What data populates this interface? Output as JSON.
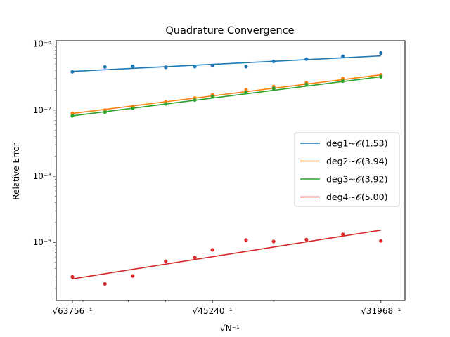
{
  "chart_data": {
    "type": "line",
    "title": "Quadrature Convergence",
    "xlabel": "√N⁻¹",
    "ylabel": "Relative Error",
    "xscale": "reciprocal-sqrt",
    "yscale": "log",
    "xlim": [
      66600,
      30560
    ],
    "ylim": [
      1.32e-10,
      1.12e-06
    ],
    "x_ticks": [
      {
        "value": 63756,
        "label": "√63756⁻¹"
      },
      {
        "value": 45240,
        "label": "√45240⁻¹"
      },
      {
        "value": 31968,
        "label": "√31968⁻¹"
      }
    ],
    "y_ticks": [
      {
        "value": 1e-09,
        "label": "10⁻⁹"
      },
      {
        "value": 1e-08,
        "label": "10⁻⁸"
      },
      {
        "value": 1e-07,
        "label": "10⁻⁷"
      },
      {
        "value": 1e-06,
        "label": "10⁻⁶"
      }
    ],
    "x": [
      63756,
      58556,
      54600,
      50400,
      47100,
      45240,
      42000,
      39600,
      37000,
      34400,
      31968
    ],
    "grid": false,
    "legend_position": "center-right",
    "series": [
      {
        "name": "deg1~𝒪(1.53)",
        "color": "#1f77b4",
        "points": [
          3.8e-07,
          4.5e-07,
          4.6e-07,
          4.45e-07,
          4.55e-07,
          4.7e-07,
          4.55e-07,
          5.45e-07,
          5.9e-07,
          6.5e-07,
          7.3e-07
        ],
        "fit": [
          3.85e-07,
          6.6e-07
        ]
      },
      {
        "name": "deg2~𝒪(3.94)",
        "color": "#ff7f0e",
        "points": [
          8.9e-08,
          1e-07,
          1.13e-07,
          1.33e-07,
          1.52e-07,
          1.7e-07,
          2.03e-07,
          2.27e-07,
          2.6e-07,
          3e-07,
          3.42e-07
        ],
        "fit": [
          8.9e-08,
          3.42e-07
        ]
      },
      {
        "name": "deg3~𝒪(3.92)",
        "color": "#2ca02c",
        "points": [
          8.2e-08,
          9.3e-08,
          1.07e-07,
          1.24e-07,
          1.42e-07,
          1.6e-07,
          1.85e-07,
          2.13e-07,
          2.46e-07,
          2.75e-07,
          3.2e-07
        ],
        "fit": [
          8.2e-08,
          3.2e-07
        ]
      },
      {
        "name": "deg4~𝒪(5.00)",
        "color": "#d62728",
        "points": [
          3e-10,
          2.35e-10,
          3.1e-10,
          5.2e-10,
          5.9e-10,
          7.7e-10,
          1.08e-09,
          1.03e-09,
          1.1e-09,
          1.32e-09,
          1.05e-09
        ],
        "fit": [
          2.8e-10,
          1.53e-09
        ]
      }
    ]
  }
}
